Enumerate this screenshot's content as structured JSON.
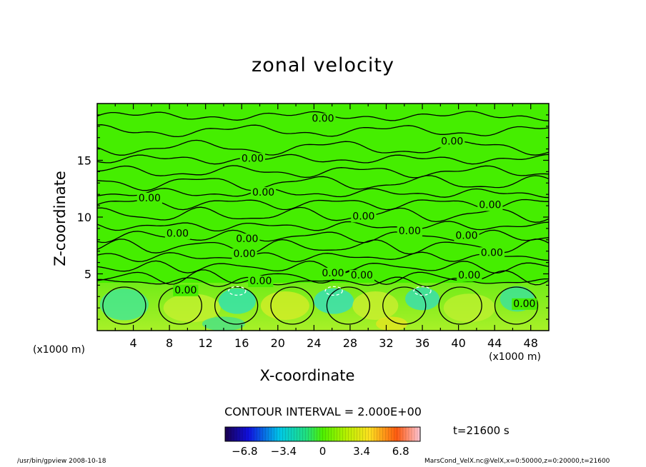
{
  "chart_data": {
    "type": "contour",
    "title": "zonal velocity",
    "xlabel": "X-coordinate",
    "ylabel": "Z-coordinate",
    "x_unit": "(x1000 m)",
    "y_unit": "(x1000 m)",
    "xlim": [
      0,
      50
    ],
    "ylim": [
      0,
      20
    ],
    "x_ticks": [
      4,
      8,
      12,
      16,
      20,
      24,
      28,
      32,
      36,
      40,
      44,
      48
    ],
    "y_ticks": [
      5,
      10,
      15
    ],
    "contour_interval_text": "CONTOUR INTERVAL = 2.000E+00",
    "contour_labels": [
      {
        "text": "0.00",
        "x": 25,
        "z": 18.7
      },
      {
        "text": "0.00",
        "x": 39.3,
        "z": 16.7
      },
      {
        "text": "0.00",
        "x": 17.2,
        "z": 15.2
      },
      {
        "text": "0.00",
        "x": 18.4,
        "z": 12.2
      },
      {
        "text": "0.00",
        "x": 5.8,
        "z": 11.7
      },
      {
        "text": "0.00",
        "x": 29.5,
        "z": 10.1
      },
      {
        "text": "0.00",
        "x": 43.5,
        "z": 11.1
      },
      {
        "text": "0.00",
        "x": 8.9,
        "z": 8.6
      },
      {
        "text": "0.00",
        "x": 34.6,
        "z": 8.8
      },
      {
        "text": "0.00",
        "x": 40.9,
        "z": 8.4
      },
      {
        "text": "0.00",
        "x": 16.6,
        "z": 8.1
      },
      {
        "text": "0.00",
        "x": 16.3,
        "z": 6.8
      },
      {
        "text": "0.00",
        "x": 43.7,
        "z": 6.9
      },
      {
        "text": "0.00",
        "x": 26.1,
        "z": 5.1
      },
      {
        "text": "0.00",
        "x": 29.3,
        "z": 4.9
      },
      {
        "text": "0.00",
        "x": 41.2,
        "z": 4.9
      },
      {
        "text": "0.00",
        "x": 18.1,
        "z": 4.4
      },
      {
        "text": "0.00",
        "x": 9.8,
        "z": 3.6
      },
      {
        "text": "0.00",
        "x": 47.3,
        "z": 2.4
      }
    ],
    "colorbar": {
      "min": -8.5,
      "max": 8.5,
      "tick_values": [
        -6.8,
        -3.4,
        0,
        3.4,
        6.8
      ],
      "tick_labels": [
        "-6.8",
        "-3.4",
        "0",
        "3.4",
        "6.8"
      ]
    },
    "time_text": "t=21600 s"
  },
  "footer": {
    "left": "/usr/bin/gpview   2008-10-18",
    "right": "MarsCond_VelX.nc@VelX,x=0:50000,z=0:20000,t=21600"
  }
}
